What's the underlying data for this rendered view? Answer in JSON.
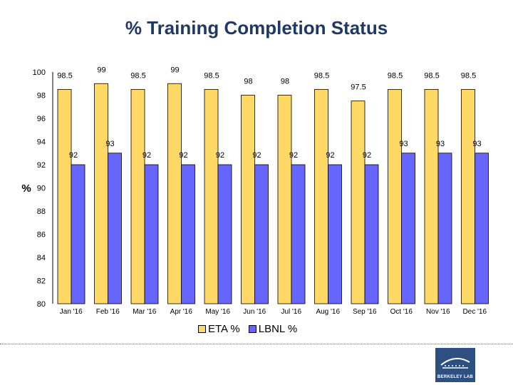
{
  "chart_data": {
    "type": "bar",
    "title": "% Training Completion Status",
    "ylabel": "%",
    "xlabel": "",
    "ylim": [
      80,
      100
    ],
    "yticks": [
      80,
      82,
      84,
      86,
      88,
      90,
      92,
      94,
      96,
      98,
      100
    ],
    "categories": [
      "Jan '16",
      "Feb '16",
      "Mar '16",
      "Apr '16",
      "May '16",
      "Jun '16",
      "Jul '16",
      "Aug '16",
      "Sep '16",
      "Oct '16",
      "Nov '16",
      "Dec '16"
    ],
    "series": [
      {
        "name": "ETA %",
        "color": "#ffd966",
        "values": [
          98.5,
          99,
          98.5,
          99,
          98.5,
          98,
          98,
          98.5,
          97.5,
          98.5,
          98.5,
          98.5
        ]
      },
      {
        "name": "LBNL %",
        "color": "#6666ff",
        "values": [
          92,
          93,
          92,
          92,
          92,
          92,
          92,
          92,
          92,
          93,
          93,
          93
        ]
      }
    ],
    "legend_position": "bottom",
    "grid": false
  },
  "logo": {
    "text": "BERKELEY LAB",
    "color": "#2e4f82"
  }
}
